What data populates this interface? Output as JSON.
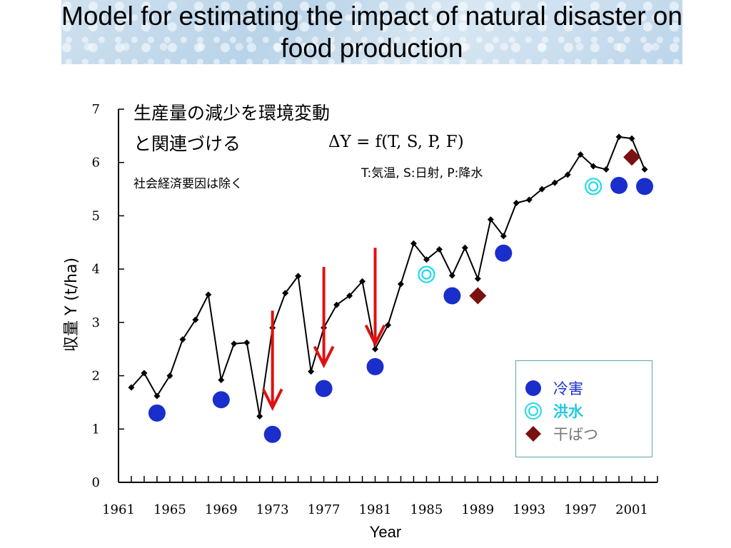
{
  "slide": {
    "title": "Model for estimating the impact of natural disaster on food production"
  },
  "annotations": {
    "note_line1": "生産量の減少を環境変動",
    "note_line2": "と関連づける",
    "note_exclusion": "社会経済要因は除く",
    "formula": "ΔY = f(T, S, P, F)",
    "variables": "T:気温, S:日射, P:降水"
  },
  "legend": {
    "items": [
      {
        "label": "冷害",
        "marker": "filled-circle",
        "color": "#1a2ecc",
        "text_color": "#1a2ecc"
      },
      {
        "label": "洪水",
        "marker": "double-circle",
        "color": "#22d8e8",
        "text_color": "#22c8e0"
      },
      {
        "label": "干ばつ",
        "marker": "diamond",
        "color": "#7b1010",
        "text_color": "#777777"
      }
    ]
  },
  "chart_data": {
    "type": "line",
    "xlabel": "Year",
    "ylabel": "収量 Y (t/ha)",
    "xlim": [
      1961,
      2003
    ],
    "ylim": [
      0,
      7
    ],
    "x_ticks": [
      1961,
      1965,
      1969,
      1973,
      1977,
      1981,
      1985,
      1989,
      1993,
      1997,
      2001
    ],
    "y_ticks": [
      0,
      1,
      2,
      3,
      4,
      5,
      6,
      7
    ],
    "grid": false,
    "series": [
      {
        "marker": "diamond",
        "color": "#000000",
        "x": [
          1962,
          1963,
          1964,
          1965,
          1966,
          1967,
          1968,
          1969,
          1970,
          1971,
          1972,
          1973,
          1974,
          1975,
          1976,
          1977,
          1978,
          1979,
          1980,
          1981,
          1982,
          1983,
          1984,
          1985,
          1986,
          1987,
          1988,
          1989,
          1990,
          1991,
          1992,
          1993,
          1994,
          1995,
          1996,
          1997,
          1998,
          1999,
          2000,
          2001,
          2002
        ],
        "y": [
          1.78,
          2.05,
          1.62,
          2.0,
          2.68,
          3.05,
          3.52,
          1.92,
          2.6,
          2.62,
          1.24,
          2.9,
          3.55,
          3.87,
          2.08,
          2.9,
          3.33,
          3.5,
          3.77,
          2.5,
          2.95,
          3.72,
          4.48,
          4.18,
          4.37,
          3.88,
          4.4,
          3.82,
          4.93,
          4.62,
          5.24,
          5.3,
          5.5,
          5.62,
          5.77,
          6.15,
          5.93,
          5.87,
          6.48,
          6.45,
          5.87
        ]
      }
    ],
    "events": {
      "cold_damage": [
        [
          1964,
          1.3
        ],
        [
          1969,
          1.55
        ],
        [
          1973,
          0.9
        ],
        [
          1977,
          1.76
        ],
        [
          1981,
          2.17
        ],
        [
          1987,
          3.5
        ],
        [
          1991,
          4.3
        ],
        [
          2000,
          5.57
        ],
        [
          2002,
          5.55
        ]
      ],
      "flood": [
        [
          1985,
          3.9
        ],
        [
          1998,
          5.55
        ]
      ],
      "drought": [
        [
          1989,
          3.5
        ],
        [
          2001,
          6.1
        ]
      ]
    },
    "decline_arrows": [
      {
        "from": [
          1973,
          3.22
        ],
        "to": [
          1973,
          1.4
        ]
      },
      {
        "from": [
          1977,
          4.04
        ],
        "to": [
          1977,
          2.2
        ]
      },
      {
        "from": [
          1981,
          4.4
        ],
        "to": [
          1981,
          2.6
        ]
      }
    ]
  }
}
